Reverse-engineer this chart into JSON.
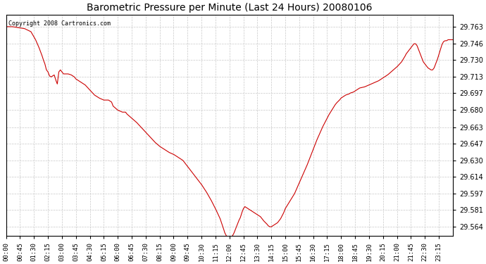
{
  "title": "Barometric Pressure per Minute (Last 24 Hours) 20080106",
  "copyright_text": "Copyright 2008 Cartronics.com",
  "line_color": "#cc0000",
  "bg_color": "#ffffff",
  "plot_bg_color": "#ffffff",
  "grid_color": "#c8c8c8",
  "grid_style": "--",
  "y_ticks": [
    29.564,
    29.581,
    29.597,
    29.614,
    29.63,
    29.647,
    29.663,
    29.68,
    29.697,
    29.713,
    29.73,
    29.746,
    29.763
  ],
  "ylim": [
    29.555,
    29.775
  ],
  "x_tick_labels": [
    "00:00",
    "00:45",
    "01:30",
    "02:15",
    "03:00",
    "03:45",
    "04:30",
    "05:15",
    "06:00",
    "06:45",
    "07:30",
    "08:15",
    "09:00",
    "09:45",
    "10:30",
    "11:15",
    "12:00",
    "12:45",
    "13:30",
    "14:15",
    "15:00",
    "15:45",
    "16:30",
    "17:15",
    "18:00",
    "18:45",
    "19:30",
    "20:15",
    "21:00",
    "21:45",
    "22:30",
    "23:15"
  ],
  "key_points": [
    [
      0,
      29.763
    ],
    [
      20,
      29.763
    ],
    [
      40,
      29.762
    ],
    [
      60,
      29.761
    ],
    [
      80,
      29.758
    ],
    [
      95,
      29.75
    ],
    [
      105,
      29.743
    ],
    [
      115,
      29.735
    ],
    [
      120,
      29.73
    ],
    [
      125,
      29.726
    ],
    [
      130,
      29.72
    ],
    [
      135,
      29.718
    ],
    [
      140,
      29.714
    ],
    [
      145,
      29.713
    ],
    [
      150,
      29.714
    ],
    [
      155,
      29.715
    ],
    [
      160,
      29.71
    ],
    [
      165,
      29.706
    ],
    [
      170,
      29.718
    ],
    [
      175,
      29.72
    ],
    [
      180,
      29.718
    ],
    [
      185,
      29.716
    ],
    [
      190,
      29.716
    ],
    [
      200,
      29.716
    ],
    [
      210,
      29.715
    ],
    [
      215,
      29.714
    ],
    [
      220,
      29.713
    ],
    [
      225,
      29.711
    ],
    [
      230,
      29.71
    ],
    [
      240,
      29.708
    ],
    [
      255,
      29.705
    ],
    [
      270,
      29.7
    ],
    [
      285,
      29.695
    ],
    [
      300,
      29.692
    ],
    [
      315,
      29.69
    ],
    [
      330,
      29.69
    ],
    [
      340,
      29.688
    ],
    [
      345,
      29.684
    ],
    [
      360,
      29.68
    ],
    [
      375,
      29.678
    ],
    [
      385,
      29.678
    ],
    [
      390,
      29.676
    ],
    [
      405,
      29.672
    ],
    [
      420,
      29.668
    ],
    [
      435,
      29.663
    ],
    [
      450,
      29.658
    ],
    [
      465,
      29.653
    ],
    [
      480,
      29.648
    ],
    [
      495,
      29.644
    ],
    [
      510,
      29.641
    ],
    [
      525,
      29.638
    ],
    [
      540,
      29.636
    ],
    [
      555,
      29.633
    ],
    [
      570,
      29.63
    ],
    [
      585,
      29.624
    ],
    [
      600,
      29.618
    ],
    [
      615,
      29.612
    ],
    [
      630,
      29.606
    ],
    [
      645,
      29.599
    ],
    [
      660,
      29.591
    ],
    [
      675,
      29.582
    ],
    [
      690,
      29.572
    ],
    [
      700,
      29.563
    ],
    [
      705,
      29.558
    ],
    [
      710,
      29.555
    ],
    [
      720,
      29.553
    ],
    [
      730,
      29.555
    ],
    [
      735,
      29.558
    ],
    [
      740,
      29.562
    ],
    [
      745,
      29.566
    ],
    [
      750,
      29.57
    ],
    [
      755,
      29.573
    ],
    [
      760,
      29.578
    ],
    [
      765,
      29.582
    ],
    [
      770,
      29.584
    ],
    [
      775,
      29.583
    ],
    [
      780,
      29.582
    ],
    [
      785,
      29.581
    ],
    [
      790,
      29.58
    ],
    [
      795,
      29.579
    ],
    [
      800,
      29.578
    ],
    [
      810,
      29.576
    ],
    [
      820,
      29.574
    ],
    [
      830,
      29.57
    ],
    [
      840,
      29.567
    ],
    [
      845,
      29.565
    ],
    [
      850,
      29.564
    ],
    [
      855,
      29.564
    ],
    [
      860,
      29.565
    ],
    [
      865,
      29.566
    ],
    [
      875,
      29.568
    ],
    [
      885,
      29.572
    ],
    [
      895,
      29.578
    ],
    [
      900,
      29.582
    ],
    [
      910,
      29.587
    ],
    [
      920,
      29.592
    ],
    [
      930,
      29.597
    ],
    [
      940,
      29.604
    ],
    [
      950,
      29.611
    ],
    [
      960,
      29.618
    ],
    [
      970,
      29.625
    ],
    [
      980,
      29.633
    ],
    [
      990,
      29.641
    ],
    [
      1000,
      29.649
    ],
    [
      1010,
      29.656
    ],
    [
      1020,
      29.663
    ],
    [
      1030,
      29.669
    ],
    [
      1040,
      29.675
    ],
    [
      1050,
      29.68
    ],
    [
      1060,
      29.685
    ],
    [
      1065,
      29.687
    ],
    [
      1075,
      29.69
    ],
    [
      1080,
      29.692
    ],
    [
      1090,
      29.694
    ],
    [
      1095,
      29.695
    ],
    [
      1105,
      29.696
    ],
    [
      1110,
      29.697
    ],
    [
      1120,
      29.698
    ],
    [
      1125,
      29.699
    ],
    [
      1130,
      29.7
    ],
    [
      1140,
      29.702
    ],
    [
      1155,
      29.703
    ],
    [
      1170,
      29.705
    ],
    [
      1185,
      29.707
    ],
    [
      1200,
      29.709
    ],
    [
      1215,
      29.712
    ],
    [
      1230,
      29.715
    ],
    [
      1245,
      29.719
    ],
    [
      1260,
      29.723
    ],
    [
      1275,
      29.728
    ],
    [
      1285,
      29.733
    ],
    [
      1290,
      29.736
    ],
    [
      1300,
      29.74
    ],
    [
      1310,
      29.744
    ],
    [
      1315,
      29.746
    ],
    [
      1320,
      29.746
    ],
    [
      1325,
      29.744
    ],
    [
      1330,
      29.74
    ],
    [
      1335,
      29.736
    ],
    [
      1340,
      29.732
    ],
    [
      1345,
      29.728
    ],
    [
      1350,
      29.726
    ],
    [
      1355,
      29.724
    ],
    [
      1360,
      29.722
    ],
    [
      1365,
      29.721
    ],
    [
      1370,
      29.72
    ],
    [
      1375,
      29.72
    ],
    [
      1380,
      29.722
    ],
    [
      1385,
      29.726
    ],
    [
      1390,
      29.73
    ],
    [
      1395,
      29.735
    ],
    [
      1400,
      29.74
    ],
    [
      1405,
      29.745
    ],
    [
      1410,
      29.748
    ],
    [
      1415,
      29.749
    ],
    [
      1420,
      29.749
    ],
    [
      1425,
      29.75
    ],
    [
      1430,
      29.75
    ],
    [
      1435,
      29.75
    ],
    [
      1440,
      29.75
    ]
  ]
}
